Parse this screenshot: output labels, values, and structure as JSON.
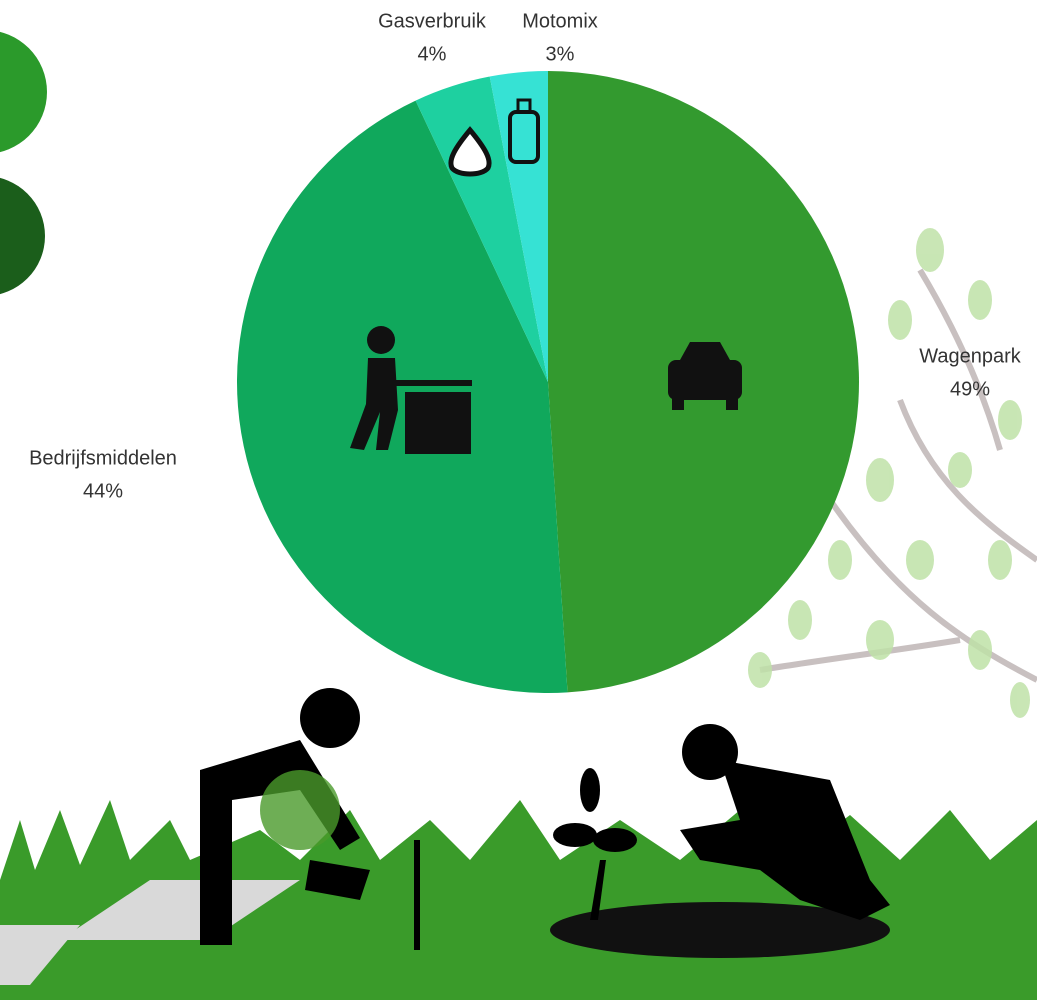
{
  "chart_data": {
    "type": "pie",
    "categories": [
      "Wagenpark",
      "Bedrijfsmiddelen",
      "Gasverbruik",
      "Motomix"
    ],
    "values": [
      49,
      44,
      4,
      3
    ],
    "value_labels": [
      "49%",
      "44%",
      "4%",
      "3%"
    ],
    "colors": [
      "#339a2f",
      "#10a85c",
      "#1ed0a0",
      "#36e2d4"
    ]
  }
}
